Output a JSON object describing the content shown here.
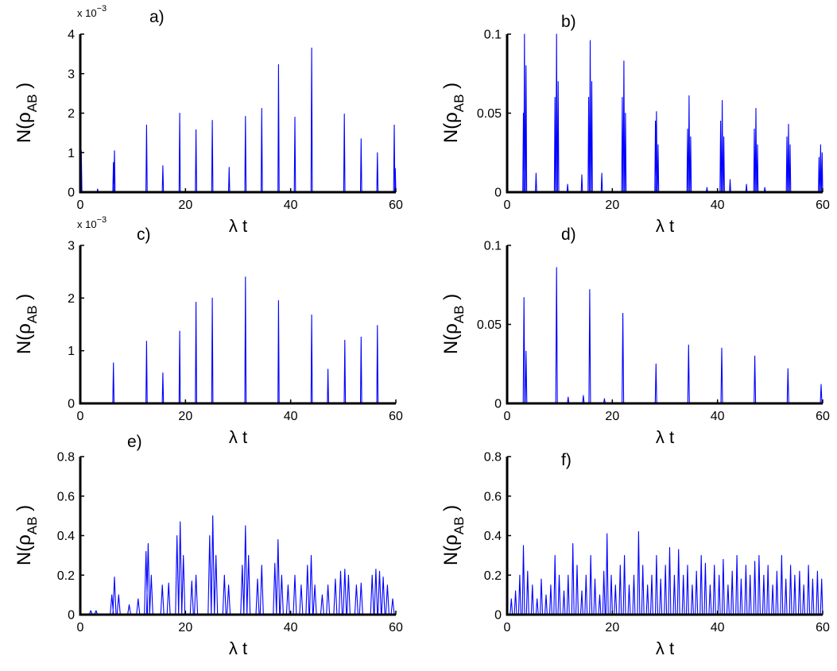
{
  "figure": {
    "title": "",
    "background": "#ffffff"
  },
  "colors": {
    "series": "#0000ff",
    "axis": "#000000"
  },
  "chart_data": [
    {
      "type": "line",
      "panel": "a)",
      "xlim": [
        0,
        60
      ],
      "ylim": [
        0,
        0.004
      ],
      "xticks": [
        0,
        20,
        40,
        60
      ],
      "xtick_labels": [
        "0",
        "20",
        "40",
        "60"
      ],
      "yticks": [
        0,
        0.001,
        0.002,
        0.003,
        0.004
      ],
      "ytick_labels": [
        "0",
        "1",
        "2",
        "3",
        "4"
      ],
      "exponent_label": "x 10",
      "exponent": "−3",
      "xlabel": "λ t",
      "ylabel": "N(ρ",
      "ylabel_sub": "AB",
      "ylabel_close": " )",
      "peak_width": 0.12,
      "peaks": [
        [
          0.2,
          0.00105
        ],
        [
          3.3,
          8e-05
        ],
        [
          6.3,
          0.00075
        ],
        [
          6.5,
          0.00105
        ],
        [
          12.6,
          0.0017
        ],
        [
          15.7,
          0.00067
        ],
        [
          18.9,
          0.002
        ],
        [
          22.0,
          0.00158
        ],
        [
          25.1,
          0.00182
        ],
        [
          28.3,
          0.00063
        ],
        [
          31.4,
          0.00192
        ],
        [
          34.5,
          0.00212
        ],
        [
          37.7,
          0.00323
        ],
        [
          40.8,
          0.0019
        ],
        [
          44.0,
          0.00365
        ],
        [
          50.2,
          0.00198
        ],
        [
          53.4,
          0.00135
        ],
        [
          56.5,
          0.001
        ],
        [
          59.7,
          0.0017
        ],
        [
          59.9,
          0.0006
        ]
      ]
    },
    {
      "type": "line",
      "panel": "b)",
      "xlim": [
        0,
        60
      ],
      "ylim": [
        0,
        0.1
      ],
      "xticks": [
        0,
        20,
        40,
        60
      ],
      "xtick_labels": [
        "0",
        "20",
        "40",
        "60"
      ],
      "yticks": [
        0,
        0.05,
        0.1
      ],
      "ytick_labels": [
        "0",
        "0.05",
        "0.1"
      ],
      "xlabel": "λ t",
      "ylabel": "N(ρ",
      "ylabel_sub": "AB",
      "ylabel_close": " )",
      "peak_width": 0.12,
      "peaks": [
        [
          3.1,
          0.05
        ],
        [
          3.3,
          0.1
        ],
        [
          3.6,
          0.08
        ],
        [
          5.5,
          0.012
        ],
        [
          9.1,
          0.06
        ],
        [
          9.4,
          0.1
        ],
        [
          9.7,
          0.07
        ],
        [
          11.5,
          0.005
        ],
        [
          14.2,
          0.011
        ],
        [
          15.5,
          0.06
        ],
        [
          15.8,
          0.096
        ],
        [
          16.1,
          0.07
        ],
        [
          18.0,
          0.012
        ],
        [
          21.9,
          0.06
        ],
        [
          22.2,
          0.083
        ],
        [
          22.5,
          0.05
        ],
        [
          28.2,
          0.045
        ],
        [
          28.4,
          0.051
        ],
        [
          28.7,
          0.03
        ],
        [
          34.3,
          0.04
        ],
        [
          34.6,
          0.061
        ],
        [
          34.9,
          0.035
        ],
        [
          38.0,
          0.003
        ],
        [
          40.6,
          0.045
        ],
        [
          40.9,
          0.058
        ],
        [
          41.2,
          0.035
        ],
        [
          42.4,
          0.008
        ],
        [
          45.5,
          0.005
        ],
        [
          47.0,
          0.04
        ],
        [
          47.3,
          0.053
        ],
        [
          47.6,
          0.03
        ],
        [
          49.0,
          0.003
        ],
        [
          53.2,
          0.035
        ],
        [
          53.5,
          0.043
        ],
        [
          53.8,
          0.03
        ],
        [
          59.3,
          0.022
        ],
        [
          59.6,
          0.03
        ],
        [
          59.9,
          0.025
        ]
      ]
    },
    {
      "type": "line",
      "panel": "c)",
      "xlim": [
        0,
        60
      ],
      "ylim": [
        0,
        0.003
      ],
      "xticks": [
        0,
        20,
        40,
        60
      ],
      "xtick_labels": [
        "0",
        "20",
        "40",
        "60"
      ],
      "yticks": [
        0,
        0.001,
        0.002,
        0.003
      ],
      "ytick_labels": [
        "0",
        "1",
        "2",
        "3"
      ],
      "exponent_label": "x 10",
      "exponent": "−3",
      "xlabel": "λ t",
      "ylabel": "N(ρ",
      "ylabel_sub": "AB",
      "ylabel_close": " )",
      "peak_width": 0.12,
      "peaks": [
        [
          6.3,
          0.00077
        ],
        [
          12.6,
          0.00118
        ],
        [
          15.7,
          0.00058
        ],
        [
          18.9,
          0.00137
        ],
        [
          22.0,
          0.00192
        ],
        [
          25.1,
          0.002
        ],
        [
          31.4,
          0.0024
        ],
        [
          37.7,
          0.00195
        ],
        [
          44.0,
          0.00168
        ],
        [
          47.1,
          0.00065
        ],
        [
          50.3,
          0.0012
        ],
        [
          53.4,
          0.00126
        ],
        [
          56.5,
          0.00148
        ]
      ]
    },
    {
      "type": "line",
      "panel": "d)",
      "xlim": [
        0,
        60
      ],
      "ylim": [
        0,
        0.1
      ],
      "xticks": [
        0,
        20,
        40,
        60
      ],
      "xtick_labels": [
        "0",
        "20",
        "40",
        "60"
      ],
      "yticks": [
        0,
        0.05,
        0.1
      ],
      "ytick_labels": [
        "0",
        "0.05",
        "0.1"
      ],
      "xlabel": "λ t",
      "ylabel": "N(ρ",
      "ylabel_sub": "AB",
      "ylabel_close": " )",
      "peak_width": 0.15,
      "peaks": [
        [
          3.2,
          0.067
        ],
        [
          3.6,
          0.033
        ],
        [
          9.4,
          0.086
        ],
        [
          11.6,
          0.004
        ],
        [
          14.5,
          0.005
        ],
        [
          15.7,
          0.072
        ],
        [
          18.5,
          0.003
        ],
        [
          22.0,
          0.057
        ],
        [
          28.3,
          0.025
        ],
        [
          34.5,
          0.037
        ],
        [
          40.8,
          0.035
        ],
        [
          47.1,
          0.03
        ],
        [
          53.4,
          0.022
        ],
        [
          59.7,
          0.012
        ]
      ]
    },
    {
      "type": "line",
      "panel": "e)",
      "xlim": [
        0,
        60
      ],
      "ylim": [
        0,
        0.8
      ],
      "xticks": [
        0,
        20,
        40,
        60
      ],
      "xtick_labels": [
        "0",
        "20",
        "40",
        "60"
      ],
      "yticks": [
        0,
        0.2,
        0.4,
        0.6,
        0.8
      ],
      "ytick_labels": [
        "0",
        "0.2",
        "0.4",
        "0.6",
        "0.8"
      ],
      "xlabel": "λ t",
      "ylabel": "N(ρ",
      "ylabel_sub": "AB",
      "ylabel_close": " )",
      "peak_width": 0.3,
      "peaks": [
        [
          2.0,
          0.02
        ],
        [
          3.0,
          0.02
        ],
        [
          6.0,
          0.1
        ],
        [
          6.5,
          0.19
        ],
        [
          7.3,
          0.1
        ],
        [
          9.3,
          0.05
        ],
        [
          11.0,
          0.08
        ],
        [
          12.5,
          0.32
        ],
        [
          12.9,
          0.36
        ],
        [
          13.5,
          0.2
        ],
        [
          15.6,
          0.15
        ],
        [
          16.8,
          0.16
        ],
        [
          18.4,
          0.4
        ],
        [
          19.0,
          0.47
        ],
        [
          19.6,
          0.3
        ],
        [
          21.2,
          0.17
        ],
        [
          22.0,
          0.2
        ],
        [
          24.6,
          0.4
        ],
        [
          25.2,
          0.5
        ],
        [
          25.8,
          0.3
        ],
        [
          27.4,
          0.2
        ],
        [
          28.2,
          0.15
        ],
        [
          30.8,
          0.25
        ],
        [
          31.4,
          0.45
        ],
        [
          32.0,
          0.3
        ],
        [
          33.7,
          0.18
        ],
        [
          34.5,
          0.25
        ],
        [
          37.0,
          0.26
        ],
        [
          37.6,
          0.38
        ],
        [
          38.3,
          0.2
        ],
        [
          39.5,
          0.15
        ],
        [
          40.8,
          0.2
        ],
        [
          42.0,
          0.15
        ],
        [
          43.2,
          0.25
        ],
        [
          43.9,
          0.3
        ],
        [
          44.6,
          0.15
        ],
        [
          46.0,
          0.1
        ],
        [
          47.1,
          0.15
        ],
        [
          48.5,
          0.18
        ],
        [
          49.5,
          0.22
        ],
        [
          50.3,
          0.23
        ],
        [
          51.0,
          0.2
        ],
        [
          52.5,
          0.15
        ],
        [
          53.4,
          0.16
        ],
        [
          55.5,
          0.2
        ],
        [
          56.2,
          0.23
        ],
        [
          56.9,
          0.22
        ],
        [
          57.6,
          0.19
        ],
        [
          58.4,
          0.15
        ],
        [
          59.4,
          0.08
        ]
      ]
    },
    {
      "type": "line",
      "panel": "f)",
      "xlim": [
        0,
        60
      ],
      "ylim": [
        0,
        0.8
      ],
      "xticks": [
        0,
        20,
        40,
        60
      ],
      "xtick_labels": [
        "0",
        "20",
        "40",
        "60"
      ],
      "yticks": [
        0,
        0.2,
        0.4,
        0.6,
        0.8
      ],
      "ytick_labels": [
        "0",
        "0.2",
        "0.4",
        "0.6",
        "0.8"
      ],
      "xlabel": "λ t",
      "ylabel": "N(ρ",
      "ylabel_sub": "AB",
      "ylabel_close": " )",
      "peak_width": 0.22,
      "peaks": [
        [
          0.8,
          0.08
        ],
        [
          1.6,
          0.12
        ],
        [
          2.4,
          0.2
        ],
        [
          3.1,
          0.35
        ],
        [
          3.9,
          0.22
        ],
        [
          4.8,
          0.15
        ],
        [
          5.7,
          0.08
        ],
        [
          6.5,
          0.18
        ],
        [
          7.4,
          0.1
        ],
        [
          8.3,
          0.15
        ],
        [
          9.1,
          0.3
        ],
        [
          9.9,
          0.2
        ],
        [
          10.8,
          0.12
        ],
        [
          11.6,
          0.2
        ],
        [
          12.5,
          0.36
        ],
        [
          13.3,
          0.25
        ],
        [
          14.2,
          0.12
        ],
        [
          15.0,
          0.2
        ],
        [
          15.9,
          0.3
        ],
        [
          16.7,
          0.18
        ],
        [
          17.6,
          0.1
        ],
        [
          18.4,
          0.22
        ],
        [
          19.0,
          0.41
        ],
        [
          19.8,
          0.2
        ],
        [
          20.6,
          0.15
        ],
        [
          21.5,
          0.25
        ],
        [
          22.3,
          0.3
        ],
        [
          23.2,
          0.15
        ],
        [
          24.1,
          0.2
        ],
        [
          25.0,
          0.42
        ],
        [
          25.8,
          0.25
        ],
        [
          26.7,
          0.15
        ],
        [
          27.5,
          0.2
        ],
        [
          28.4,
          0.3
        ],
        [
          29.2,
          0.18
        ],
        [
          30.1,
          0.25
        ],
        [
          30.9,
          0.34
        ],
        [
          31.8,
          0.2
        ],
        [
          32.6,
          0.33
        ],
        [
          33.5,
          0.2
        ],
        [
          34.3,
          0.25
        ],
        [
          35.2,
          0.15
        ],
        [
          36.0,
          0.22
        ],
        [
          36.9,
          0.3
        ],
        [
          37.7,
          0.26
        ],
        [
          38.6,
          0.15
        ],
        [
          39.4,
          0.25
        ],
        [
          40.3,
          0.2
        ],
        [
          41.1,
          0.28
        ],
        [
          42.0,
          0.15
        ],
        [
          42.8,
          0.22
        ],
        [
          43.7,
          0.3
        ],
        [
          44.5,
          0.18
        ],
        [
          45.4,
          0.25
        ],
        [
          46.2,
          0.2
        ],
        [
          47.1,
          0.27
        ],
        [
          47.9,
          0.3
        ],
        [
          48.8,
          0.2
        ],
        [
          49.6,
          0.25
        ],
        [
          50.5,
          0.15
        ],
        [
          51.3,
          0.22
        ],
        [
          52.2,
          0.3
        ],
        [
          53.0,
          0.18
        ],
        [
          53.9,
          0.25
        ],
        [
          54.7,
          0.2
        ],
        [
          55.6,
          0.22
        ],
        [
          56.4,
          0.15
        ],
        [
          57.3,
          0.25
        ],
        [
          58.1,
          0.18
        ],
        [
          59.0,
          0.22
        ],
        [
          59.8,
          0.18
        ]
      ]
    }
  ]
}
